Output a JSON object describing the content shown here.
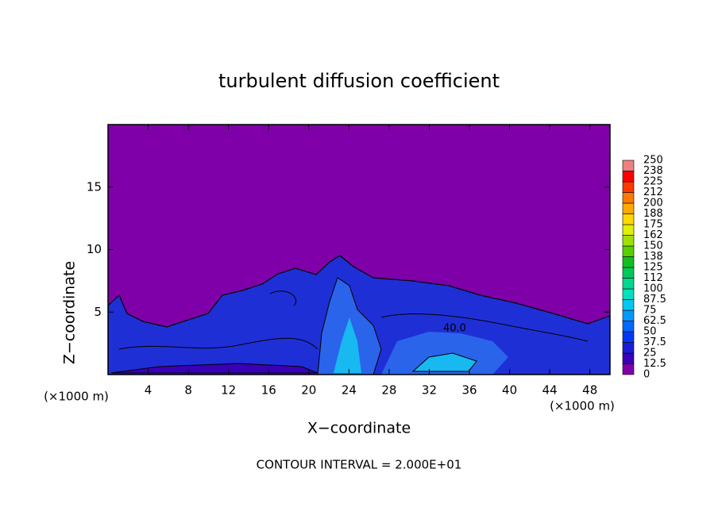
{
  "chart_data": {
    "type": "contour",
    "title": "turbulent diffusion coefficient",
    "xlabel": "X−coordinate",
    "ylabel": "Z−coordinate",
    "x_unit_labels": [
      "(×1000 m)",
      "(×1000 m)"
    ],
    "xlim": [
      0,
      50
    ],
    "xticks": [
      4,
      8,
      12,
      16,
      20,
      24,
      28,
      32,
      36,
      40,
      44,
      48
    ],
    "ylim": [
      0,
      20
    ],
    "yticks": [
      5,
      10,
      15
    ],
    "contour_label": "40.0",
    "footer": "CONTOUR INTERVAL = 2.000E+01",
    "colorbar": {
      "ticks": [
        0,
        12.5,
        25,
        37.5,
        50,
        62.5,
        75,
        87.5,
        100,
        112,
        125,
        138,
        150,
        162,
        175,
        188,
        200,
        212,
        225,
        238,
        250
      ],
      "colors": [
        "#7f00a8",
        "#3a00b8",
        "#1c1cd8",
        "#0038f8",
        "#0068ff",
        "#0098ff",
        "#00c8f0",
        "#00e0c0",
        "#00d890",
        "#00c858",
        "#10c020",
        "#58d000",
        "#a0e000",
        "#e0f000",
        "#ffd800",
        "#ffa800",
        "#ff7800",
        "#ff3800",
        "#ff0000",
        "#f08080"
      ]
    }
  }
}
